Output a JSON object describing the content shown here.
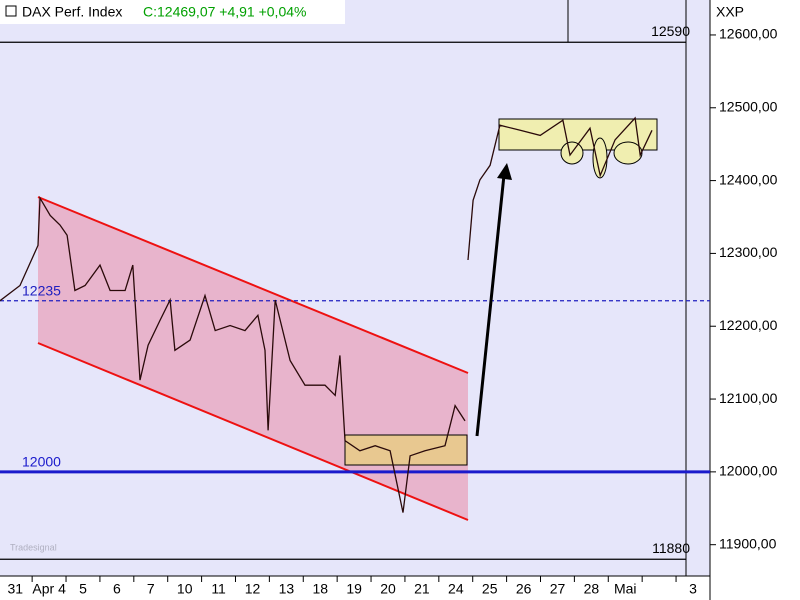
{
  "chart_data": {
    "type": "line",
    "title": "DAX Perf. Index",
    "subtitle": "C:12469,07 +4,91 +0,04%",
    "axis_label": "XXP",
    "watermark": "Tradesignal",
    "categories": [
      "31",
      "Apr 4",
      "5",
      "6",
      "7",
      "10",
      "11",
      "12",
      "13",
      "18",
      "19",
      "20",
      "21",
      "24",
      "25",
      "26",
      "27",
      "28",
      "Mai",
      null,
      "3"
    ],
    "xlim": [
      -0.45,
      20.5
    ],
    "ylim": [
      11857,
      12648
    ],
    "yticks": [
      {
        "value": 11900,
        "label": "11900,00"
      },
      {
        "value": 12000,
        "label": "12000,00"
      },
      {
        "value": 12100,
        "label": "12100,00"
      },
      {
        "value": 12200,
        "label": "12200,00"
      },
      {
        "value": 12300,
        "label": "12300,00"
      },
      {
        "value": 12400,
        "label": "12400,00"
      },
      {
        "value": 12500,
        "label": "12500,00"
      },
      {
        "value": 12600,
        "label": "12600,00"
      }
    ],
    "hlines": [
      {
        "value": 12590,
        "color": "#000000",
        "dashed": false,
        "label_position": "right"
      },
      {
        "value": 12235,
        "color": "#2020c0",
        "dashed": true,
        "label_position": "left"
      },
      {
        "value": 12000,
        "color": "#1a1acc",
        "dashed": false,
        "label_position": "left"
      },
      {
        "value": 11880,
        "color": "#000000",
        "dashed": false,
        "label_position": "right"
      }
    ],
    "series": [
      {
        "name": "DAX Perf. Index",
        "color": "#2a0a0a",
        "x": [
          -0.45,
          0.14,
          0.67,
          0.73,
          1.03,
          1.32,
          1.53,
          1.76,
          2.06,
          2.5,
          2.8,
          3.24,
          3.47,
          3.68,
          3.92,
          4.27,
          4.57,
          4.71,
          5.16,
          5.6,
          5.9,
          6.34,
          6.78,
          7.16,
          7.37,
          7.46,
          7.67,
          8.11,
          8.55,
          9.14,
          9.44,
          9.58,
          9.73,
          10.17,
          10.62,
          11.06,
          11.44,
          11.65,
          12.09,
          12.68,
          12.98,
          13.27,
          13.3,
          13.36,
          13.51,
          13.71,
          14.01,
          14.3,
          14.9,
          15.49,
          16.16,
          16.37,
          16.96,
          17.26,
          17.7,
          18.29,
          18.44,
          18.79
        ],
        "values": [
          12235,
          12256,
          12311,
          12376,
          12352,
          12339,
          12325,
          12249,
          12256,
          12284,
          12249,
          12249,
          12284,
          12126,
          12174,
          12208,
          12236,
          12167,
          12181,
          12242,
          12194,
          12201,
          12194,
          12215,
          12167,
          12057,
          12236,
          12153,
          12119,
          12119,
          12105,
          12160,
          12043,
          12029,
          12036,
          12029,
          11944,
          12022,
          12029,
          12036,
          12091,
          12070,
          null,
          12291,
          12373,
          12401,
          12421,
          12476,
          12469,
          12462,
          12483,
          12435,
          12472,
          12407,
          12456,
          12486,
          12435,
          12469
        ]
      }
    ]
  }
}
